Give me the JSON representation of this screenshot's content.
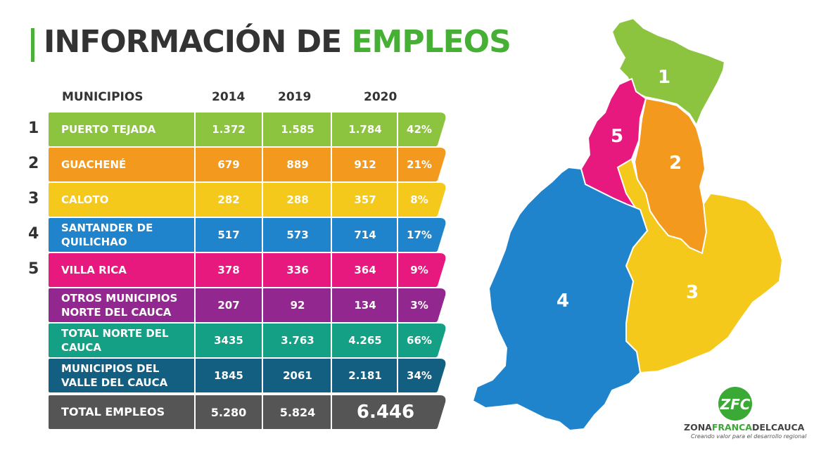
{
  "title": {
    "part1": "INFORMACIÓN DE ",
    "part2": "EMPLEOS"
  },
  "headers": {
    "municipios": "MUNICIPIOS",
    "y2014": "2014",
    "y2019": "2019",
    "y2020": "2020"
  },
  "rows": [
    {
      "num": "1",
      "name": "PUERTO TEJADA",
      "v2014": "1.372",
      "v2019": "1.585",
      "v2020": "1.784",
      "pct": "42%",
      "color": "#8cc43f"
    },
    {
      "num": "2",
      "name": "GUACHENÉ",
      "v2014": "679",
      "v2019": "889",
      "v2020": "912",
      "pct": "21%",
      "color": "#f39a1e"
    },
    {
      "num": "3",
      "name": "CALOTO",
      "v2014": "282",
      "v2019": "288",
      "v2020": "357",
      "pct": "8%",
      "color": "#f5c91b"
    },
    {
      "num": "4",
      "name": "SANTANDER DE QUILICHAO",
      "v2014": "517",
      "v2019": "573",
      "v2020": "714",
      "pct": "17%",
      "color": "#1f84cc"
    },
    {
      "num": "5",
      "name": "VILLA RICA",
      "v2014": "378",
      "v2019": "336",
      "v2020": "364",
      "pct": "9%",
      "color": "#e8197e"
    },
    {
      "num": "",
      "name": "OTROS MUNICIPIOS NORTE DEL CAUCA",
      "v2014": "207",
      "v2019": "92",
      "v2020": "134",
      "pct": "3%",
      "color": "#92278f"
    },
    {
      "num": "",
      "name": "TOTAL NORTE DEL CAUCA",
      "v2014": "3435",
      "v2019": "3.763",
      "v2020": "4.265",
      "pct": "66%",
      "color": "#14a085"
    },
    {
      "num": "",
      "name": "MUNICIPIOS DEL VALLE DEL CAUCA",
      "v2014": "1845",
      "v2019": "2061",
      "v2020": "2.181",
      "pct": "34%",
      "color": "#135f82"
    }
  ],
  "total": {
    "name": "TOTAL EMPLEOS",
    "v2014": "5.280",
    "v2019": "5.824",
    "v2020": "6.446",
    "color": "#555555"
  },
  "map_labels": {
    "r1": "1",
    "r2": "2",
    "r3": "3",
    "r4": "4",
    "r5": "5"
  },
  "logo": {
    "mark": "ZFC",
    "name_a": "ZONA",
    "name_b": "FRANCA",
    "name_c": "DELCAUCA",
    "tagline": "Creando valor para el desarrollo regional"
  }
}
